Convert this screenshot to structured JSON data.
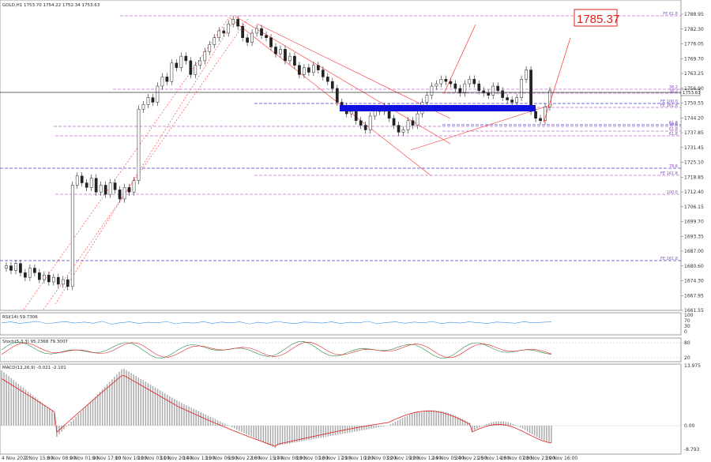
{
  "chart_data": {
    "type": "candlestick",
    "symbol_header": "GOLD,H1  1753.70 1754.22 1752.34 1753.63",
    "callout_price": "1785.37",
    "current_price": "1753.63",
    "price_axis_labels": [
      "1788.95",
      "1782.30",
      "1776.05",
      "1769.70",
      "1763.25",
      "1756.90",
      "1750.55",
      "1744.20",
      "1737.85",
      "1731.45",
      "1725.10",
      "1718.85",
      "1712.40",
      "1706.15",
      "1699.70",
      "1693.35",
      "1687.00",
      "1680.60",
      "1674.30",
      "1667.95",
      "1661.55"
    ],
    "time_axis_labels": [
      "4 Nov 2022",
      "7 Nov 15:00",
      "8 Nov 08:00",
      "9 Nov 01:00",
      "9 Nov 17:00",
      "10 Nov 10:00",
      "11 Nov 03:00",
      "11 Nov 20:00",
      "14 Nov 13:00",
      "15 Nov 06:00",
      "15 Nov 22:00",
      "16 Nov 15:00",
      "17 Nov 08:00",
      "18 Nov 01:00",
      "18 Nov 17:00",
      "21 Nov 10:00",
      "22 Nov 03:00",
      "22 Nov 19:00",
      "23 Nov 12:00",
      "24 Nov 05:00",
      "24 Nov 21:00",
      "25 Nov 14:00",
      "28 Nov 07:00",
      "28 Nov 23:00",
      "29 Nov 16:00"
    ],
    "fib_labels": [
      "FE 61.8",
      "38.2",
      "FE 100.0",
      "50.0",
      "61.8",
      "78.6",
      "FE 161.8",
      "100.0",
      "FE 261.8",
      "38.2",
      "FE 161.8",
      "61.8",
      "61.8"
    ],
    "rsi": {
      "label": "RSI(14) 59.7306",
      "scale": [
        "100",
        "70",
        "30",
        "0"
      ],
      "values": [
        55,
        60,
        52,
        58,
        62,
        50,
        57,
        61,
        54,
        59,
        53,
        63,
        48,
        56,
        60,
        52,
        58,
        55,
        62,
        50,
        57,
        54,
        61,
        52,
        59,
        55,
        60,
        49,
        58,
        53,
        62,
        56,
        51,
        59,
        57,
        54,
        60,
        52,
        58,
        55,
        63,
        50,
        57,
        60,
        53,
        59,
        55,
        62,
        51,
        58,
        54,
        60,
        56,
        52,
        59,
        57,
        53,
        61,
        55,
        58,
        60
      ]
    },
    "stochastic": {
      "label": "Stoch(5,3,3) 95.2368 79.3007",
      "scale": [
        "80",
        "20"
      ]
    },
    "macd": {
      "label": "MACD(12,26,9) -0.021 -2.101",
      "scale": [
        "13.975",
        "0.00",
        "-8.793"
      ]
    },
    "candles": [
      1676,
      1677,
      1675,
      1678,
      1674,
      1672,
      1676,
      1674,
      1671,
      1673,
      1670,
      1672,
      1669,
      1671,
      1668,
      1712,
      1716,
      1713,
      1711,
      1715,
      1709,
      1712,
      1708,
      1713,
      1710,
      1706,
      1711,
      1709,
      1714,
      1745,
      1747,
      1750,
      1748,
      1755,
      1759,
      1757,
      1765,
      1763,
      1768,
      1766,
      1760,
      1764,
      1766,
      1770,
      1773,
      1776,
      1779,
      1778,
      1782,
      1784,
      1781,
      1776,
      1774,
      1778,
      1780,
      1777,
      1776,
      1772,
      1769,
      1771,
      1766,
      1768,
      1764,
      1760,
      1763,
      1761,
      1764,
      1762,
      1759,
      1757,
      1754,
      1748,
      1746,
      1743,
      1744,
      1740,
      1738,
      1736,
      1742,
      1745,
      1744,
      1746,
      1741,
      1738,
      1735,
      1736,
      1740,
      1738,
      1743,
      1748,
      1751,
      1755,
      1756,
      1758,
      1757,
      1756,
      1754,
      1752,
      1756,
      1758,
      1756,
      1753,
      1752,
      1751,
      1755,
      1753,
      1750,
      1749,
      1748,
      1750,
      1758,
      1762,
      1744,
      1741,
      1740,
      1746,
      1753
    ]
  }
}
